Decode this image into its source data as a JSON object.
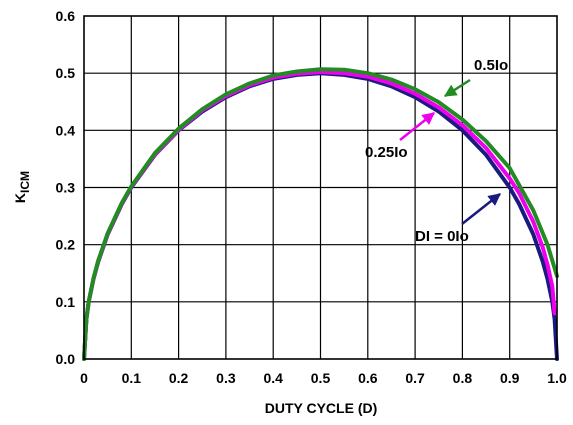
{
  "chart_data": {
    "type": "line",
    "title": "",
    "xlabel": "DUTY CYCLE (D)",
    "ylabel": "K",
    "ylabel_subscript": "ICM",
    "xlim": [
      0,
      1.0
    ],
    "ylim": [
      0,
      0.6
    ],
    "xticks": [
      0,
      0.1,
      0.2,
      0.3,
      0.4,
      0.5,
      0.6,
      0.7,
      0.8,
      0.9,
      1.0
    ],
    "xtick_labels": [
      "0",
      "0.1",
      "0.2",
      "0.3",
      "0.4",
      "0.5",
      "0.6",
      "0.7",
      "0.8",
      "0.9",
      "1.0"
    ],
    "yticks": [
      0,
      0.1,
      0.2,
      0.3,
      0.4,
      0.5,
      0.6
    ],
    "ytick_labels": [
      "0.0",
      "0.1",
      "0.2",
      "0.3",
      "0.4",
      "0.5",
      "0.6"
    ],
    "grid": true,
    "series": [
      {
        "name": "DI = 0Io",
        "color": "#1a1a80",
        "x": [
          0.0,
          0.005,
          0.01,
          0.02,
          0.03,
          0.05,
          0.08,
          0.1,
          0.15,
          0.2,
          0.25,
          0.3,
          0.35,
          0.4,
          0.45,
          0.5,
          0.55,
          0.6,
          0.65,
          0.7,
          0.75,
          0.8,
          0.85,
          0.9,
          0.92,
          0.95,
          0.97,
          0.98,
          0.99,
          0.995,
          1.0
        ],
        "y": [
          0.0,
          0.07,
          0.1,
          0.14,
          0.17,
          0.218,
          0.271,
          0.3,
          0.357,
          0.4,
          0.433,
          0.458,
          0.477,
          0.49,
          0.497,
          0.5,
          0.497,
          0.49,
          0.477,
          0.458,
          0.433,
          0.4,
          0.357,
          0.3,
          0.271,
          0.218,
          0.17,
          0.14,
          0.1,
          0.07,
          0.0
        ]
      },
      {
        "name": "0.25Io",
        "color": "#ee00ee",
        "x": [
          0.0,
          0.005,
          0.01,
          0.02,
          0.03,
          0.05,
          0.08,
          0.1,
          0.15,
          0.2,
          0.25,
          0.3,
          0.35,
          0.4,
          0.45,
          0.5,
          0.55,
          0.6,
          0.65,
          0.7,
          0.75,
          0.8,
          0.85,
          0.9,
          0.92,
          0.95,
          0.97,
          0.98,
          0.99,
          0.995
        ],
        "y": [
          0.0,
          0.07,
          0.1,
          0.141,
          0.171,
          0.219,
          0.272,
          0.301,
          0.358,
          0.401,
          0.435,
          0.46,
          0.479,
          0.492,
          0.499,
          0.502,
          0.5,
          0.494,
          0.482,
          0.464,
          0.44,
          0.409,
          0.369,
          0.316,
          0.29,
          0.24,
          0.195,
          0.165,
          0.127,
          0.08
        ]
      },
      {
        "name": "0.5Io",
        "color": "#228b22",
        "x": [
          0.0,
          0.005,
          0.01,
          0.02,
          0.03,
          0.05,
          0.08,
          0.1,
          0.15,
          0.2,
          0.25,
          0.3,
          0.35,
          0.4,
          0.45,
          0.5,
          0.55,
          0.6,
          0.65,
          0.7,
          0.75,
          0.8,
          0.85,
          0.9,
          0.95,
          0.98,
          1.0
        ],
        "y": [
          0.0,
          0.07,
          0.1,
          0.141,
          0.172,
          0.22,
          0.273,
          0.302,
          0.36,
          0.403,
          0.437,
          0.463,
          0.482,
          0.496,
          0.503,
          0.507,
          0.506,
          0.5,
          0.489,
          0.472,
          0.449,
          0.419,
          0.381,
          0.334,
          0.26,
          0.2,
          0.145
        ]
      }
    ],
    "annotations": [
      {
        "text": "0.5Io",
        "series": "0.5Io",
        "x": 0.76,
        "y": 0.452
      },
      {
        "text": "0.25Io",
        "series": "0.25Io",
        "x": 0.755,
        "y": 0.438
      },
      {
        "text": "DI = 0Io",
        "series": "DI = 0Io",
        "x": 0.92,
        "y": 0.3
      }
    ]
  }
}
